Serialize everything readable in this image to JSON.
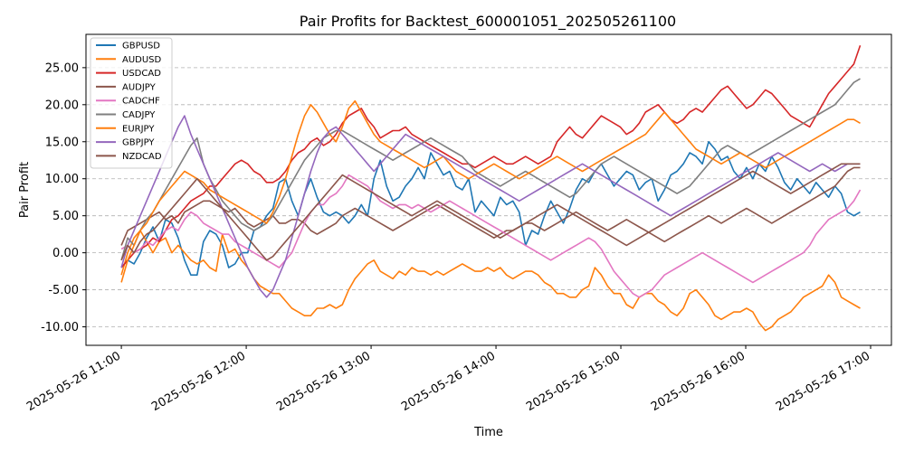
{
  "chart_data": {
    "type": "line",
    "title": "Pair Profits for Backtest_600001051_202505261100",
    "xlabel": "Time",
    "ylabel": "Pair Profit",
    "x_start": "2025-05-26 11:00",
    "x_end": "2025-05-26 16:55",
    "xlim": [
      "2025-05-26 10:43",
      "2025-05-26 17:10"
    ],
    "ylim": [
      -12.5,
      29.5
    ],
    "x_ticks": [
      "2025-05-26 11:00",
      "2025-05-26 12:00",
      "2025-05-26 13:00",
      "2025-05-26 14:00",
      "2025-05-26 15:00",
      "2025-05-26 16:00",
      "2025-05-26 17:00"
    ],
    "y_ticks": [
      "-10.00",
      "-5.00",
      "0.00",
      "5.00",
      "10.00",
      "15.00",
      "20.00",
      "25.00"
    ],
    "grid": "y-dashed",
    "legend_position": "top-left",
    "series": [
      {
        "name": "GBPUSD",
        "color": "#1f77b4",
        "values": [
          -2.0,
          -1.0,
          -1.5,
          0.0,
          2.0,
          3.5,
          1.5,
          4.5,
          4.0,
          2.0,
          -1.0,
          -3.0,
          -3.0,
          1.5,
          3.0,
          2.5,
          1.0,
          -2.0,
          -1.5,
          0.0,
          0.0,
          3.0,
          3.5,
          5.0,
          6.0,
          9.5,
          10.0,
          7.0,
          5.0,
          8.0,
          10.0,
          7.5,
          5.5,
          5.0,
          5.5,
          5.0,
          4.0,
          5.0,
          6.5,
          5.0,
          10.0,
          12.5,
          9.0,
          7.0,
          7.5,
          9.0,
          10.0,
          11.5,
          10.0,
          13.5,
          12.0,
          10.5,
          11.0,
          9.0,
          8.5,
          10.0,
          5.5,
          7.0,
          6.0,
          5.0,
          7.5,
          6.5,
          7.0,
          5.5,
          1.0,
          3.0,
          2.5,
          5.0,
          7.0,
          5.5,
          4.0,
          6.0,
          8.5,
          10.0,
          9.5,
          11.0,
          12.0,
          10.5,
          9.0,
          10.0,
          11.0,
          10.5,
          8.5,
          9.5,
          10.0,
          7.0,
          8.5,
          10.5,
          11.0,
          12.0,
          13.5,
          13.0,
          12.0,
          15.0,
          14.0,
          12.5,
          13.0,
          11.0,
          10.0,
          11.5,
          10.0,
          12.0,
          11.0,
          13.0,
          11.5,
          9.5,
          8.5,
          10.0,
          9.0,
          8.0,
          9.5,
          8.5,
          7.5,
          9.0,
          8.0,
          5.5,
          5.0,
          5.5
        ]
      },
      {
        "name": "AUDUSD",
        "color": "#ff7f0e",
        "values": [
          -3.0,
          0.0,
          2.0,
          3.0,
          1.5,
          0.0,
          1.5,
          2.0,
          0.0,
          1.0,
          0.0,
          -1.0,
          -1.5,
          -1.0,
          -2.0,
          -2.5,
          2.5,
          0.0,
          0.5,
          -1.0,
          -2.0,
          -3.5,
          -4.5,
          -5.0,
          -5.5,
          -5.5,
          -6.5,
          -7.5,
          -8.0,
          -8.5,
          -8.5,
          -7.5,
          -7.5,
          -7.0,
          -7.5,
          -7.0,
          -5.0,
          -3.5,
          -2.5,
          -1.5,
          -1.0,
          -2.5,
          -3.0,
          -3.5,
          -2.5,
          -3.0,
          -2.0,
          -2.5,
          -2.5,
          -3.0,
          -2.5,
          -3.0,
          -2.5,
          -2.0,
          -1.5,
          -2.0,
          -2.5,
          -2.5,
          -2.0,
          -2.5,
          -2.0,
          -3.0,
          -3.5,
          -3.0,
          -2.5,
          -2.5,
          -3.0,
          -4.0,
          -4.5,
          -5.5,
          -5.5,
          -6.0,
          -6.0,
          -5.0,
          -4.5,
          -2.0,
          -3.0,
          -4.5,
          -5.5,
          -5.5,
          -7.0,
          -7.5,
          -6.0,
          -5.5,
          -5.5,
          -6.5,
          -7.0,
          -8.0,
          -8.5,
          -7.5,
          -5.5,
          -5.0,
          -6.0,
          -7.0,
          -8.5,
          -9.0,
          -8.5,
          -8.0,
          -8.0,
          -7.5,
          -8.0,
          -9.5,
          -10.5,
          -10.0,
          -9.0,
          -8.5,
          -8.0,
          -7.0,
          -6.0,
          -5.5,
          -5.0,
          -4.5,
          -3.0,
          -4.0,
          -6.0,
          -6.5,
          -7.0,
          -7.5
        ]
      },
      {
        "name": "USDCAD",
        "color": "#d62728",
        "values": [
          -2.0,
          -1.0,
          0.0,
          0.5,
          1.0,
          2.0,
          1.5,
          3.0,
          4.5,
          5.0,
          6.0,
          7.0,
          7.5,
          8.0,
          9.0,
          9.0,
          10.0,
          11.0,
          12.0,
          12.5,
          12.0,
          11.0,
          10.5,
          9.5,
          9.5,
          10.0,
          11.0,
          12.5,
          13.5,
          14.0,
          15.0,
          15.5,
          14.5,
          15.0,
          16.0,
          17.5,
          18.5,
          19.0,
          19.5,
          18.0,
          17.0,
          15.5,
          16.0,
          16.5,
          16.5,
          17.0,
          16.0,
          15.5,
          15.0,
          14.5,
          14.0,
          13.5,
          13.0,
          12.5,
          12.0,
          12.0,
          11.5,
          12.0,
          12.5,
          13.0,
          12.5,
          12.0,
          12.0,
          12.5,
          13.0,
          12.5,
          12.0,
          12.5,
          13.0,
          15.0,
          16.0,
          17.0,
          16.0,
          15.5,
          16.5,
          17.5,
          18.5,
          18.0,
          17.5,
          17.0,
          16.0,
          16.5,
          17.5,
          19.0,
          19.5,
          20.0,
          19.0,
          18.0,
          17.5,
          18.0,
          19.0,
          19.5,
          19.0,
          20.0,
          21.0,
          22.0,
          22.5,
          21.5,
          20.5,
          19.5,
          20.0,
          21.0,
          22.0,
          21.5,
          20.5,
          19.5,
          18.5,
          18.0,
          17.5,
          17.0,
          18.5,
          20.0,
          21.5,
          22.5,
          23.5,
          24.5,
          25.5,
          28.0
        ]
      },
      {
        "name": "AUDJPY",
        "color": "#8c564b",
        "values": [
          1.0,
          3.0,
          3.5,
          4.0,
          4.5,
          5.0,
          5.5,
          4.5,
          5.0,
          4.0,
          5.5,
          6.0,
          6.5,
          7.0,
          7.0,
          6.5,
          6.0,
          5.5,
          6.0,
          5.0,
          4.0,
          3.5,
          4.0,
          4.5,
          5.0,
          4.0,
          4.0,
          4.5,
          4.5,
          4.0,
          3.0,
          2.5,
          3.0,
          3.5,
          4.0,
          5.0,
          5.5,
          6.0,
          5.5,
          5.0,
          4.5,
          4.0,
          3.5,
          3.0,
          3.5,
          4.0,
          4.5,
          5.0,
          5.5,
          6.0,
          6.5,
          6.0,
          5.5,
          5.0,
          4.5,
          4.0,
          3.5,
          3.0,
          2.5,
          2.0,
          2.5,
          3.0,
          3.0,
          3.5,
          4.0,
          4.0,
          3.5,
          3.0,
          3.5,
          4.0,
          4.5,
          5.0,
          5.5,
          5.0,
          4.5,
          4.0,
          3.5,
          3.0,
          3.5,
          4.0,
          4.5,
          4.0,
          3.5,
          3.0,
          2.5,
          2.0,
          1.5,
          2.0,
          2.5,
          3.0,
          3.5,
          4.0,
          4.5,
          5.0,
          4.5,
          4.0,
          4.5,
          5.0,
          5.5,
          6.0,
          5.5,
          5.0,
          4.5,
          4.0,
          4.5,
          5.0,
          5.5,
          6.0,
          6.5,
          7.0,
          7.5,
          8.0,
          8.5,
          9.0,
          10.0,
          11.0,
          11.5,
          11.5
        ]
      },
      {
        "name": "CADCHF",
        "color": "#e377c2",
        "values": [
          0.5,
          1.0,
          0.0,
          0.5,
          1.5,
          1.0,
          2.0,
          3.0,
          3.5,
          3.0,
          4.5,
          5.5,
          5.0,
          4.0,
          3.5,
          3.0,
          2.5,
          2.5,
          1.5,
          1.0,
          0.5,
          0.0,
          -0.5,
          -1.0,
          -1.5,
          -2.0,
          -1.0,
          0.0,
          2.0,
          4.0,
          5.5,
          6.5,
          6.5,
          7.5,
          8.0,
          9.0,
          10.5,
          10.0,
          9.5,
          9.0,
          8.0,
          7.0,
          6.5,
          6.0,
          6.5,
          6.5,
          6.0,
          6.5,
          6.0,
          5.5,
          6.0,
          6.5,
          7.0,
          6.5,
          6.0,
          5.5,
          5.0,
          4.5,
          4.0,
          3.5,
          3.0,
          2.5,
          2.0,
          1.5,
          1.0,
          0.5,
          0.0,
          -0.5,
          -1.0,
          -0.5,
          0.0,
          0.5,
          1.0,
          1.5,
          2.0,
          1.5,
          0.5,
          -1.0,
          -2.5,
          -3.5,
          -4.5,
          -5.5,
          -6.0,
          -5.5,
          -5.0,
          -4.0,
          -3.0,
          -2.5,
          -2.0,
          -1.5,
          -1.0,
          -0.5,
          0.0,
          -0.5,
          -1.0,
          -1.5,
          -2.0,
          -2.5,
          -3.0,
          -3.5,
          -4.0,
          -3.5,
          -3.0,
          -2.5,
          -2.0,
          -1.5,
          -1.0,
          -0.5,
          0.0,
          1.0,
          2.5,
          3.5,
          4.5,
          5.0,
          5.5,
          6.0,
          7.0,
          8.5
        ]
      },
      {
        "name": "CADJPY",
        "color": "#7f7f7f",
        "values": [
          -1.0,
          2.0,
          1.0,
          3.0,
          4.5,
          5.5,
          7.0,
          8.5,
          10.0,
          11.5,
          13.0,
          14.5,
          15.5,
          12.0,
          10.0,
          8.5,
          7.0,
          6.0,
          5.0,
          4.0,
          3.5,
          3.0,
          3.5,
          4.0,
          5.0,
          6.5,
          8.0,
          9.5,
          11.0,
          12.5,
          13.5,
          14.5,
          15.5,
          16.0,
          16.5,
          16.5,
          16.0,
          15.5,
          15.0,
          14.5,
          14.0,
          13.5,
          13.0,
          12.5,
          13.0,
          13.5,
          14.0,
          14.5,
          15.0,
          15.5,
          15.0,
          14.5,
          14.0,
          13.5,
          13.0,
          12.0,
          11.0,
          10.5,
          10.0,
          9.5,
          9.0,
          9.5,
          10.0,
          10.5,
          11.0,
          10.5,
          10.0,
          9.5,
          9.0,
          8.5,
          8.0,
          7.5,
          8.0,
          9.0,
          10.0,
          11.0,
          12.0,
          12.5,
          13.0,
          12.5,
          12.0,
          11.5,
          11.0,
          10.5,
          10.0,
          9.5,
          9.0,
          8.5,
          8.0,
          8.5,
          9.0,
          10.0,
          11.0,
          12.0,
          13.0,
          14.0,
          14.5,
          14.0,
          13.5,
          13.0,
          13.5,
          14.0,
          14.5,
          15.0,
          15.5,
          16.0,
          16.5,
          17.0,
          17.5,
          18.0,
          18.5,
          19.0,
          19.5,
          20.0,
          21.0,
          22.0,
          23.0,
          23.5
        ]
      },
      {
        "name": "EURJPY",
        "color": "#ff7f0e",
        "values": [
          -4.0,
          -1.0,
          1.0,
          3.0,
          4.0,
          5.5,
          7.0,
          8.0,
          9.0,
          10.0,
          11.0,
          10.5,
          10.0,
          9.5,
          8.5,
          8.0,
          7.5,
          7.0,
          6.5,
          6.0,
          5.5,
          5.0,
          4.5,
          4.0,
          5.5,
          7.5,
          10.0,
          13.0,
          16.0,
          18.5,
          20.0,
          19.0,
          17.5,
          16.0,
          15.0,
          17.0,
          19.5,
          20.5,
          19.0,
          17.5,
          16.0,
          15.0,
          14.5,
          14.0,
          13.5,
          13.0,
          12.5,
          12.0,
          11.5,
          12.0,
          12.5,
          13.0,
          12.0,
          11.0,
          10.5,
          10.0,
          10.5,
          11.0,
          11.5,
          12.0,
          11.5,
          11.0,
          10.5,
          10.0,
          10.5,
          11.0,
          11.5,
          12.0,
          12.5,
          13.0,
          12.5,
          12.0,
          11.5,
          11.0,
          11.5,
          12.0,
          12.5,
          13.0,
          13.5,
          14.0,
          14.5,
          15.0,
          15.5,
          16.0,
          17.0,
          18.0,
          19.0,
          18.0,
          17.0,
          16.0,
          15.0,
          14.0,
          13.5,
          13.0,
          12.5,
          12.0,
          12.5,
          13.0,
          13.5,
          13.0,
          12.5,
          12.0,
          11.5,
          12.0,
          12.5,
          13.0,
          13.5,
          14.0,
          14.5,
          15.0,
          15.5,
          16.0,
          16.5,
          17.0,
          17.5,
          18.0,
          18.0,
          17.5
        ]
      },
      {
        "name": "GBPJPY",
        "color": "#9467bd",
        "values": [
          -2.0,
          1.0,
          3.0,
          5.0,
          7.0,
          9.0,
          11.0,
          13.0,
          15.0,
          17.0,
          18.5,
          16.0,
          14.0,
          12.0,
          10.0,
          8.0,
          6.0,
          4.0,
          2.0,
          0.0,
          -2.0,
          -3.5,
          -5.0,
          -6.0,
          -5.0,
          -3.0,
          -1.0,
          2.0,
          5.0,
          8.0,
          11.0,
          13.5,
          15.5,
          16.5,
          17.0,
          16.0,
          15.0,
          14.0,
          13.0,
          12.0,
          11.0,
          12.0,
          13.0,
          14.0,
          15.0,
          16.0,
          15.5,
          15.0,
          14.5,
          14.0,
          13.5,
          13.0,
          12.5,
          12.0,
          11.5,
          11.0,
          10.5,
          10.0,
          9.5,
          9.0,
          8.5,
          8.0,
          7.5,
          7.0,
          7.5,
          8.0,
          8.5,
          9.0,
          9.5,
          10.0,
          10.5,
          11.0,
          11.5,
          12.0,
          11.5,
          11.0,
          10.5,
          10.0,
          9.5,
          9.0,
          8.5,
          8.0,
          7.5,
          7.0,
          6.5,
          6.0,
          5.5,
          5.0,
          5.5,
          6.0,
          6.5,
          7.0,
          7.5,
          8.0,
          8.5,
          9.0,
          9.5,
          10.0,
          10.5,
          11.0,
          11.5,
          12.0,
          12.5,
          13.0,
          13.5,
          13.0,
          12.5,
          12.0,
          11.5,
          11.0,
          11.5,
          12.0,
          11.5,
          11.0,
          11.5,
          12.0,
          12.0,
          12.0
        ]
      },
      {
        "name": "NZDCAD",
        "color": "#8c564b",
        "values": [
          -1.0,
          1.0,
          0.0,
          1.5,
          2.5,
          3.0,
          4.0,
          5.0,
          6.0,
          7.0,
          8.0,
          9.0,
          10.0,
          9.0,
          8.0,
          7.0,
          6.0,
          5.0,
          4.0,
          3.0,
          2.0,
          1.0,
          0.0,
          -1.0,
          -0.5,
          0.5,
          1.5,
          2.5,
          3.5,
          4.5,
          5.5,
          6.5,
          7.5,
          8.5,
          9.5,
          10.5,
          10.0,
          9.5,
          9.0,
          8.5,
          8.0,
          7.5,
          7.0,
          6.5,
          6.0,
          5.5,
          5.0,
          5.5,
          6.0,
          6.5,
          7.0,
          6.5,
          6.0,
          5.5,
          5.0,
          4.5,
          4.0,
          3.5,
          3.0,
          2.5,
          2.0,
          2.5,
          3.0,
          3.5,
          4.0,
          4.5,
          5.0,
          5.5,
          6.0,
          6.5,
          6.0,
          5.5,
          5.0,
          4.5,
          4.0,
          3.5,
          3.0,
          2.5,
          2.0,
          1.5,
          1.0,
          1.5,
          2.0,
          2.5,
          3.0,
          3.5,
          4.0,
          4.5,
          5.0,
          5.5,
          6.0,
          6.5,
          7.0,
          7.5,
          8.0,
          8.5,
          9.0,
          9.5,
          10.0,
          10.5,
          11.0,
          10.5,
          10.0,
          9.5,
          9.0,
          8.5,
          8.0,
          8.5,
          9.0,
          9.5,
          10.0,
          10.5,
          11.0,
          11.5,
          12.0,
          12.0,
          12.0,
          12.0
        ]
      }
    ]
  }
}
